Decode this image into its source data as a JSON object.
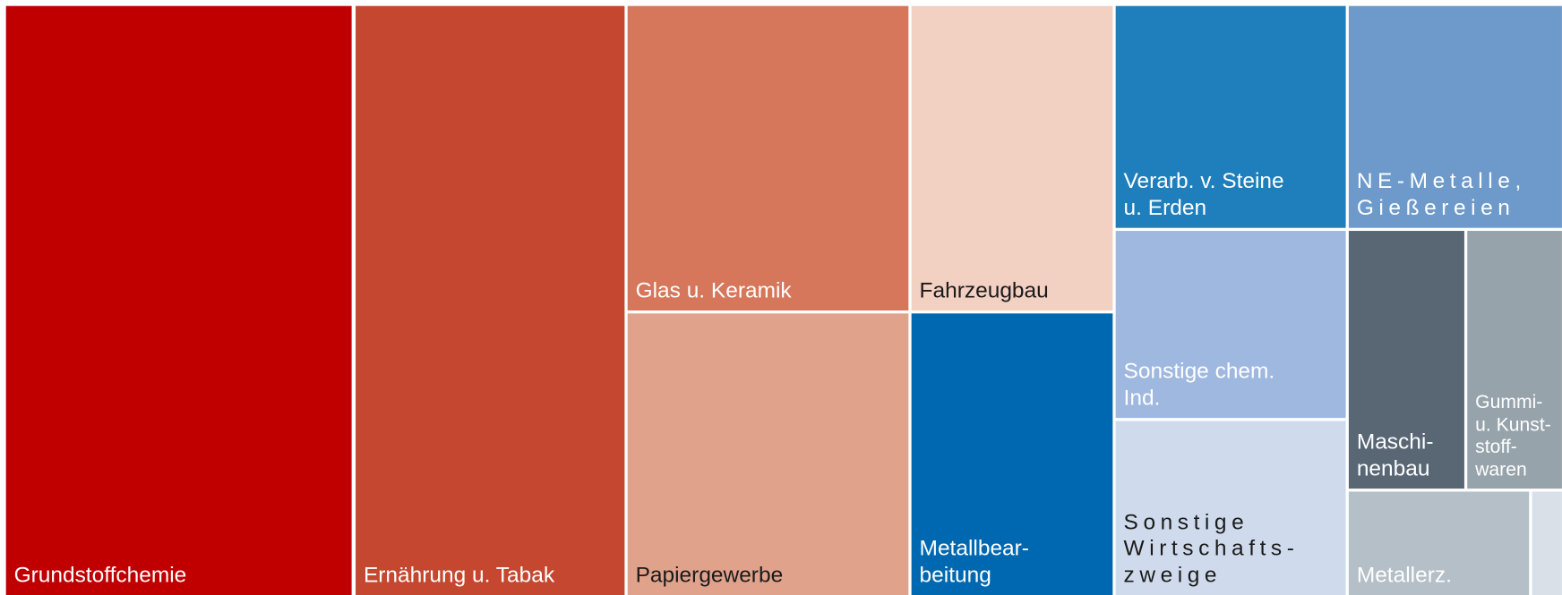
{
  "chart_data": {
    "type": "treemap",
    "labels": [
      "Grundstoffchemie",
      "Ernährung u. Tabak",
      "Glas u. Keramik",
      "Papiergewerbe",
      "Fahrzeugbau",
      "Metallbear-\nbeitung",
      "Verarb. v. Steine\nu. Erden",
      "NE-Metalle,\nGießereien",
      "Sonstige chem.\nInd.",
      "Sonstige\nWirtschafts-\nzweige",
      "Maschi-\nnenbau",
      "Gummi-\nu. Kunst-\nstoff-\nwaren",
      "Metallerz.",
      null
    ]
  }
}
